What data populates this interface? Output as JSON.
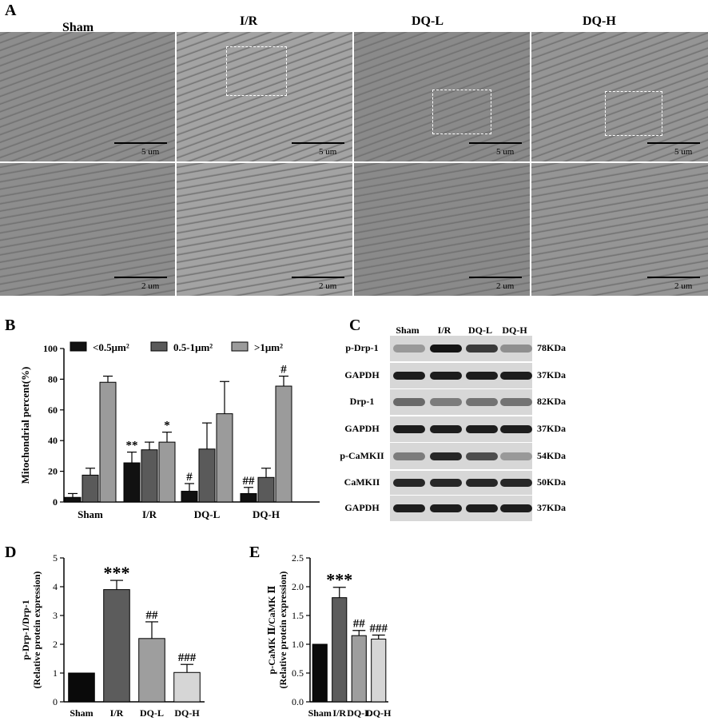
{
  "panel_a": {
    "label": "A",
    "groups": [
      "Sham",
      "I/R",
      "DQ-L",
      "DQ-H"
    ],
    "scale_top": "5 um",
    "scale_bottom": "2 um"
  },
  "panel_b": {
    "label": "B",
    "ylabel": "Mitochondrial percent(%)",
    "legend": [
      "<0.5μm²",
      "0.5-1μm²",
      ">1μm²"
    ]
  },
  "panel_c": {
    "label": "C",
    "lanes": [
      "Sham",
      "I/R",
      "DQ-L",
      "DQ-H"
    ],
    "blots": [
      {
        "name": "p-Drp-1",
        "kda": "78KDa"
      },
      {
        "name": "GAPDH",
        "kda": "37KDa"
      },
      {
        "name": "Drp-1",
        "kda": "82KDa"
      },
      {
        "name": "GAPDH",
        "kda": "37KDa"
      },
      {
        "name": "p-CaMKII",
        "kda": "54KDa"
      },
      {
        "name": "CaMKII",
        "kda": "50KDa"
      },
      {
        "name": "GAPDH",
        "kda": "37KDa"
      }
    ]
  },
  "panel_d": {
    "label": "D"
  },
  "panel_e": {
    "label": "E"
  },
  "chart_data": [
    {
      "id": "B",
      "type": "bar",
      "categories": [
        "Sham",
        "I/R",
        "DQ-L",
        "DQ-H"
      ],
      "series": [
        {
          "name": "<0.5μm²",
          "color": "#111111",
          "values": [
            3,
            25.5,
            7,
            5.5
          ],
          "errors": [
            2.5,
            7,
            5,
            4
          ],
          "annotations": [
            "",
            "**",
            "#",
            "##"
          ]
        },
        {
          "name": "0.5-1μm²",
          "color": "#5a5a5a",
          "values": [
            17.5,
            34,
            34.5,
            16
          ],
          "errors": [
            4.5,
            5,
            17,
            6
          ],
          "annotations": [
            "",
            "",
            "",
            ""
          ]
        },
        {
          "name": ">1μm²",
          "color": "#9b9b9b",
          "values": [
            78,
            39,
            57.5,
            75.5
          ],
          "errors": [
            4,
            6.5,
            21,
            6.5
          ],
          "annotations": [
            "",
            "*",
            "",
            "#"
          ]
        }
      ],
      "ylabel": "Mitochondrial percent(%)",
      "ylim": [
        0,
        100
      ],
      "yticks": [
        0,
        20,
        40,
        60,
        80,
        100
      ]
    },
    {
      "id": "D",
      "type": "bar",
      "categories": [
        "Sham",
        "I/R",
        "DQ-L",
        "DQ-H"
      ],
      "values": [
        1,
        3.9,
        2.2,
        1.02
      ],
      "errors": [
        0,
        0.32,
        0.58,
        0.28
      ],
      "colors": [
        "#0a0a0a",
        "#5c5c5c",
        "#9e9e9e",
        "#d6d6d6"
      ],
      "annotations": [
        "",
        "***",
        "##",
        "###"
      ],
      "ylabel": "p-Drp-1/Drp-1",
      "ylabel2": "(Relative protein expression)",
      "ylim": [
        0,
        5
      ],
      "yticks": [
        0,
        1,
        2,
        3,
        4,
        5
      ]
    },
    {
      "id": "E",
      "type": "bar",
      "categories": [
        "Sham",
        "I/R",
        "DQ-L",
        "DQ-H"
      ],
      "values": [
        1,
        1.81,
        1.15,
        1.09
      ],
      "errors": [
        0,
        0.18,
        0.09,
        0.07
      ],
      "colors": [
        "#0a0a0a",
        "#5c5c5c",
        "#9e9e9e",
        "#d6d6d6"
      ],
      "annotations": [
        "",
        "***",
        "##",
        "###"
      ],
      "ylabel": "p-CaMK Ⅱ/CaMK Ⅱ",
      "ylabel2": "(Relative protein expression)",
      "ylim": [
        0,
        2.5
      ],
      "yticks": [
        "0.0",
        "0.5",
        "1.0",
        "1.5",
        "2.0",
        "2.5"
      ]
    }
  ]
}
